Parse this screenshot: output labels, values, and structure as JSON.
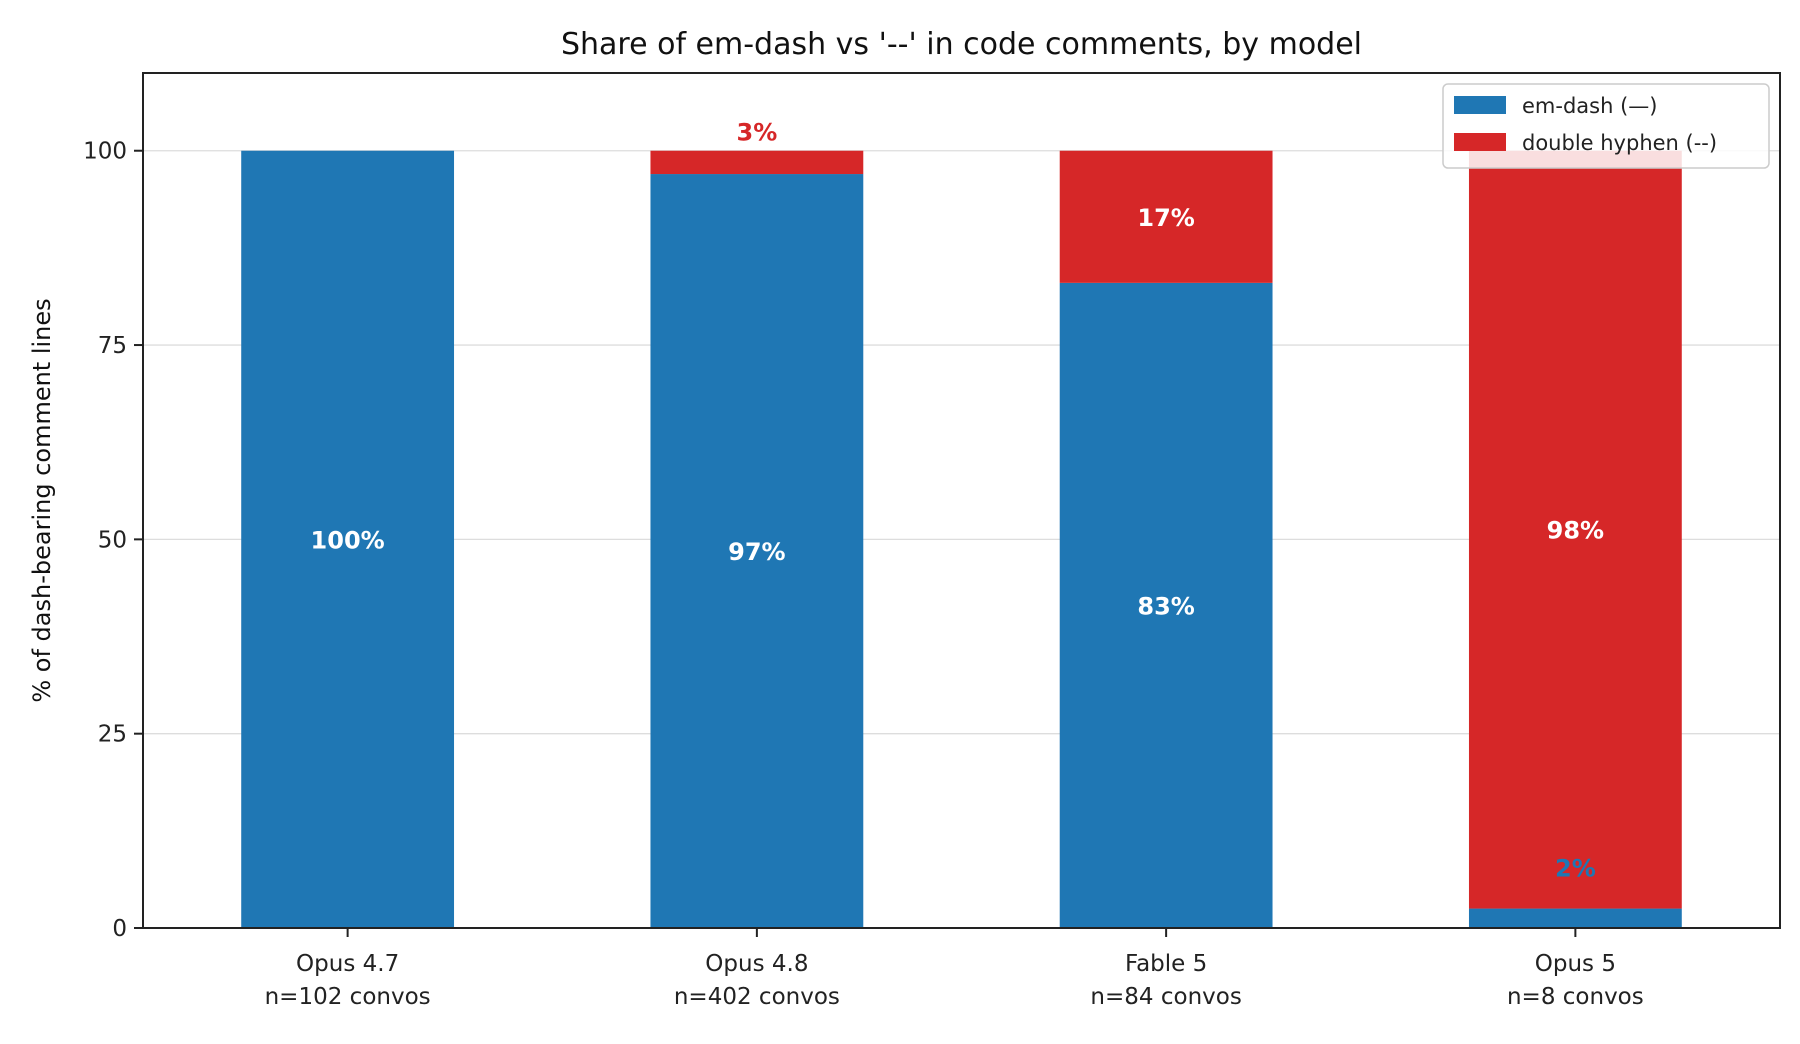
{
  "chart_data": {
    "type": "bar",
    "stacked": true,
    "title": "Share of em-dash vs '--' in code comments, by model",
    "xlabel": "",
    "ylabel": "% of dash-bearing comment lines",
    "ylim": [
      0,
      110
    ],
    "yticks": [
      0,
      25,
      50,
      75,
      100
    ],
    "ytick_labels": [
      "0",
      "25",
      "50",
      "75",
      "100"
    ],
    "grid": "horizontal",
    "legend_position": "top-right",
    "categories": [
      "Opus 4.7",
      "Opus 4.8",
      "Fable 5",
      "Opus 5"
    ],
    "category_sublabels": [
      "n=102 convos",
      "n=402 convos",
      "n=84 convos",
      "n=8 convos"
    ],
    "series": [
      {
        "name": "em-dash (—)",
        "color": "#1f77b4",
        "values": [
          100,
          97,
          83,
          2.5
        ],
        "labels": [
          "100%",
          "97%",
          "83%",
          "2%"
        ]
      },
      {
        "name": "double hyphen (--)",
        "color": "#d62728",
        "values": [
          0,
          3,
          17,
          97.5
        ],
        "labels": [
          "",
          "3%",
          "17%",
          "98%"
        ]
      }
    ]
  }
}
